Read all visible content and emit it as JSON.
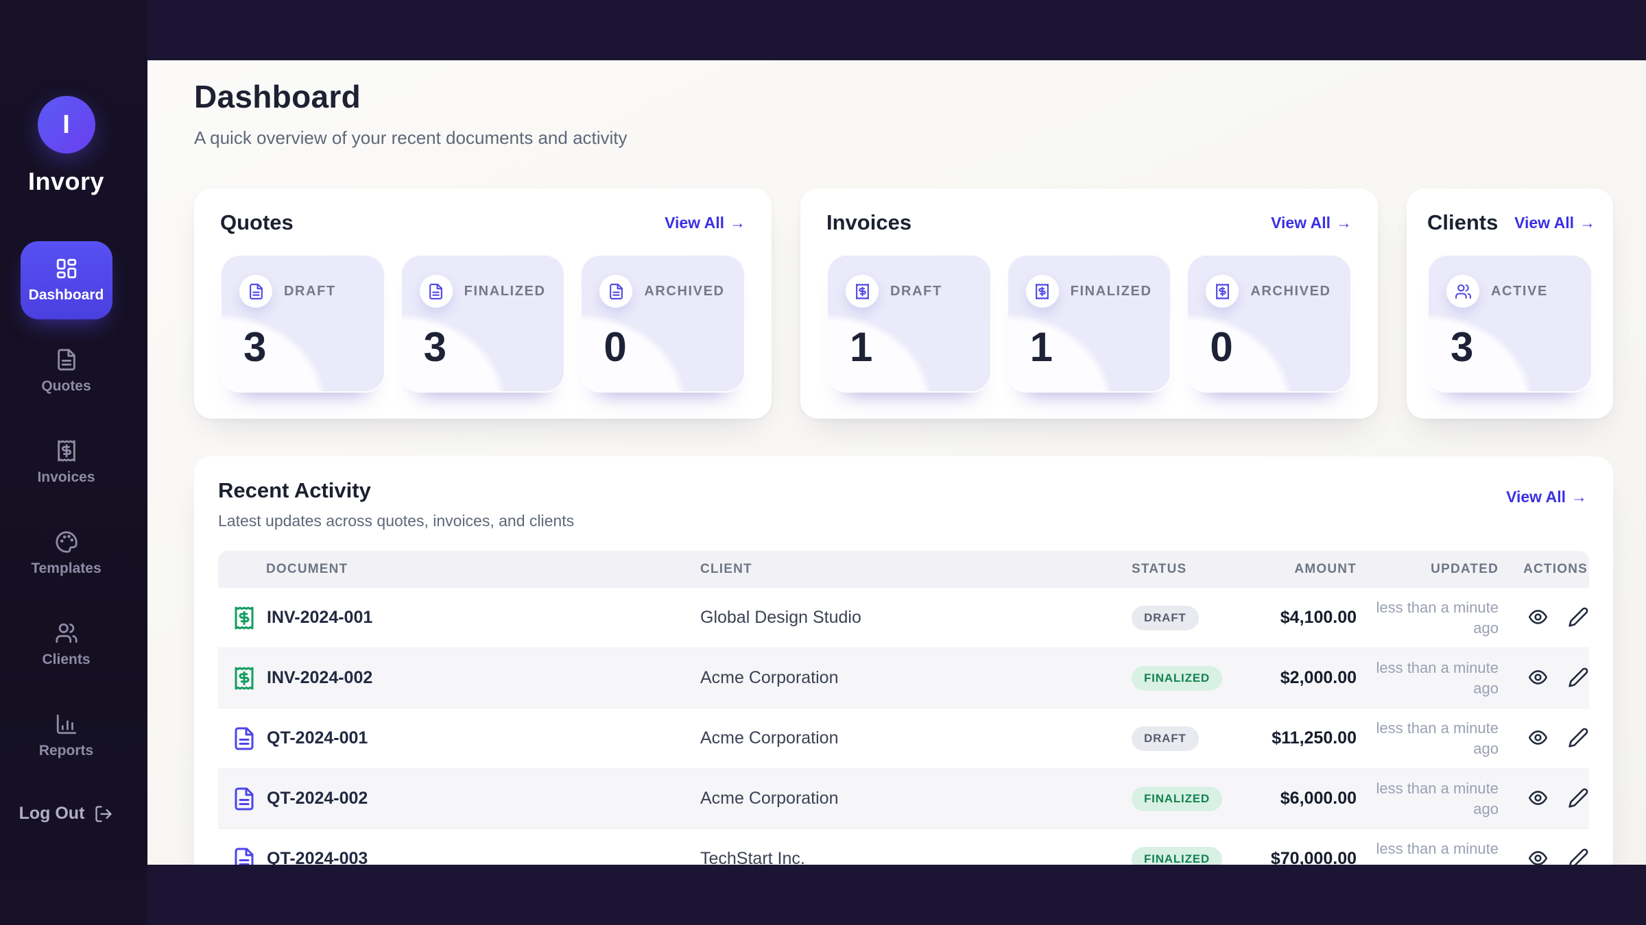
{
  "brand": {
    "initial": "I",
    "name": "Invory"
  },
  "sidebar": {
    "items": [
      {
        "label": "Dashboard",
        "icon": "layout-dashboard-icon",
        "active": true
      },
      {
        "label": "Quotes",
        "icon": "file-text-icon",
        "active": false
      },
      {
        "label": "Invoices",
        "icon": "receipt-icon",
        "active": false
      },
      {
        "label": "Templates",
        "icon": "palette-icon",
        "active": false
      },
      {
        "label": "Clients",
        "icon": "users-icon",
        "active": false
      },
      {
        "label": "Reports",
        "icon": "chart-column-icon",
        "active": false
      }
    ],
    "logout": {
      "label": "Log Out",
      "icon": "log-out-icon"
    }
  },
  "header": {
    "title": "Dashboard",
    "subtitle": "A quick overview of your recent documents and activity"
  },
  "ui": {
    "view_all_label": "View All",
    "arrow": "→"
  },
  "summary_cards": [
    {
      "id": "quotes",
      "title": "Quotes",
      "stats": [
        {
          "label": "DRAFT",
          "value": "3",
          "icon": "file-text-icon"
        },
        {
          "label": "FINALIZED",
          "value": "3",
          "icon": "file-text-icon"
        },
        {
          "label": "ARCHIVED",
          "value": "0",
          "icon": "file-text-icon"
        }
      ]
    },
    {
      "id": "invoices",
      "title": "Invoices",
      "stats": [
        {
          "label": "DRAFT",
          "value": "1",
          "icon": "receipt-icon"
        },
        {
          "label": "FINALIZED",
          "value": "1",
          "icon": "receipt-icon"
        },
        {
          "label": "ARCHIVED",
          "value": "0",
          "icon": "receipt-icon"
        }
      ]
    },
    {
      "id": "clients",
      "title": "Clients",
      "stats": [
        {
          "label": "ACTIVE",
          "value": "3",
          "icon": "users-icon"
        }
      ]
    }
  ],
  "activity": {
    "title": "Recent Activity",
    "subtitle": "Latest updates across quotes, invoices, and clients",
    "columns": [
      "DOCUMENT",
      "CLIENT",
      "STATUS",
      "AMOUNT",
      "UPDATED",
      "ACTIONS"
    ],
    "rows": [
      {
        "document": "INV-2024-001",
        "doc_type": "invoice",
        "icon": "receipt-icon",
        "client": "Global Design Studio",
        "status": "DRAFT",
        "status_type": "draft",
        "amount": "$4,100.00",
        "updated": "less than a minute ago"
      },
      {
        "document": "INV-2024-002",
        "doc_type": "invoice",
        "icon": "receipt-icon",
        "client": "Acme Corporation",
        "status": "FINALIZED",
        "status_type": "finalized",
        "amount": "$2,000.00",
        "updated": "less than a minute ago"
      },
      {
        "document": "QT-2024-001",
        "doc_type": "quote",
        "icon": "file-text-icon",
        "client": "Acme Corporation",
        "status": "DRAFT",
        "status_type": "draft",
        "amount": "$11,250.00",
        "updated": "less than a minute ago"
      },
      {
        "document": "QT-2024-002",
        "doc_type": "quote",
        "icon": "file-text-icon",
        "client": "Acme Corporation",
        "status": "FINALIZED",
        "status_type": "finalized",
        "amount": "$6,000.00",
        "updated": "less than a minute ago"
      },
      {
        "document": "QT-2024-003",
        "doc_type": "quote",
        "icon": "file-text-icon",
        "client": "TechStart Inc.",
        "status": "FINALIZED",
        "status_type": "finalized",
        "amount": "$70,000.00",
        "updated": "less than a minute ago"
      }
    ]
  },
  "colors": {
    "accent": "#4f46e5",
    "link": "#3a30e4",
    "invoice_icon": "#149e62",
    "quote_icon": "#4c45e8",
    "finalized_text": "#12834f",
    "sidebar_bg": "#151021",
    "content_bg": "#f8f7f4"
  }
}
